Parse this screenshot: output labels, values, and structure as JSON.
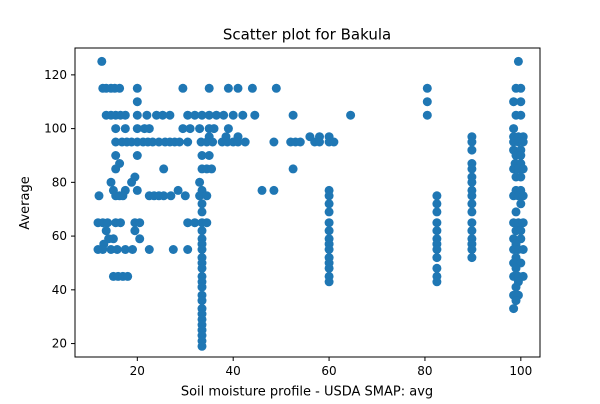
{
  "chart_data": {
    "type": "scatter",
    "title": "Scatter plot for Bakula",
    "xlabel": "Soil moisture profile - USDA SMAP: avg",
    "ylabel": "Average",
    "xlim": [
      7,
      104
    ],
    "ylim": [
      15,
      130
    ],
    "xticks": [
      20,
      40,
      60,
      80,
      100
    ],
    "yticks": [
      20,
      40,
      60,
      80,
      100,
      120
    ],
    "grid": false,
    "marker_color": "#1f77b4",
    "series": [
      {
        "points": [
          [
            12.6,
            125
          ],
          [
            12.8,
            115
          ],
          [
            13.5,
            115
          ],
          [
            14.5,
            115
          ],
          [
            15.3,
            115
          ],
          [
            16.3,
            115
          ],
          [
            20,
            115
          ],
          [
            29.5,
            115
          ],
          [
            35,
            115
          ],
          [
            39,
            115
          ],
          [
            41,
            115
          ],
          [
            44,
            115
          ],
          [
            49,
            115
          ],
          [
            80.5,
            115
          ],
          [
            99.5,
            125
          ],
          [
            99,
            115
          ],
          [
            100,
            115
          ],
          [
            20,
            110
          ],
          [
            80.5,
            110
          ],
          [
            98.5,
            110
          ],
          [
            100,
            110
          ],
          [
            13.5,
            105
          ],
          [
            14.5,
            105
          ],
          [
            15.5,
            105
          ],
          [
            16.5,
            105
          ],
          [
            17.5,
            105
          ],
          [
            20,
            105
          ],
          [
            22,
            105
          ],
          [
            24,
            105
          ],
          [
            25.3,
            105
          ],
          [
            26.8,
            105
          ],
          [
            30.5,
            105
          ],
          [
            32,
            105
          ],
          [
            33.5,
            105
          ],
          [
            35,
            105
          ],
          [
            36.5,
            105
          ],
          [
            38,
            105
          ],
          [
            40,
            105
          ],
          [
            42,
            105
          ],
          [
            44.5,
            105
          ],
          [
            52.5,
            105
          ],
          [
            64.5,
            105
          ],
          [
            80.5,
            105
          ],
          [
            99,
            105
          ],
          [
            100,
            105
          ],
          [
            15.5,
            100
          ],
          [
            17.5,
            100
          ],
          [
            20,
            100
          ],
          [
            21.5,
            100
          ],
          [
            22.5,
            100
          ],
          [
            29.5,
            100
          ],
          [
            31,
            100
          ],
          [
            33,
            100
          ],
          [
            35,
            100
          ],
          [
            36,
            100
          ],
          [
            39,
            100
          ],
          [
            98.5,
            100
          ],
          [
            35,
            97
          ],
          [
            38.5,
            97
          ],
          [
            41,
            97
          ],
          [
            56,
            97
          ],
          [
            58,
            97
          ],
          [
            60,
            97
          ],
          [
            89.8,
            97
          ],
          [
            98.5,
            97
          ],
          [
            99.5,
            97
          ],
          [
            100.5,
            97
          ],
          [
            15.5,
            95
          ],
          [
            16.8,
            95
          ],
          [
            17.8,
            95
          ],
          [
            18.8,
            95
          ],
          [
            20,
            95
          ],
          [
            21.2,
            95
          ],
          [
            22.2,
            95
          ],
          [
            23.2,
            95
          ],
          [
            24.5,
            95
          ],
          [
            25.8,
            95
          ],
          [
            26.8,
            95
          ],
          [
            27.8,
            95
          ],
          [
            28.8,
            95
          ],
          [
            30.5,
            95
          ],
          [
            33.3,
            95
          ],
          [
            34.5,
            95
          ],
          [
            35.7,
            95
          ],
          [
            37.7,
            95
          ],
          [
            38.8,
            95
          ],
          [
            40,
            95
          ],
          [
            41,
            95
          ],
          [
            42.5,
            95
          ],
          [
            48.5,
            95
          ],
          [
            52,
            95
          ],
          [
            53,
            95
          ],
          [
            54,
            95
          ],
          [
            57,
            95
          ],
          [
            58,
            95
          ],
          [
            60,
            95
          ],
          [
            61,
            95
          ],
          [
            89.8,
            95
          ],
          [
            98.5,
            95
          ],
          [
            99.5,
            95
          ],
          [
            100.5,
            95
          ],
          [
            89.8,
            92
          ],
          [
            98.5,
            92
          ],
          [
            100,
            92
          ],
          [
            15.5,
            90
          ],
          [
            20,
            90
          ],
          [
            33.5,
            90
          ],
          [
            35,
            90
          ],
          [
            99,
            90
          ],
          [
            100,
            90
          ],
          [
            16.3,
            87
          ],
          [
            89.8,
            87
          ],
          [
            98.8,
            87
          ],
          [
            100,
            87
          ],
          [
            15.5,
            85
          ],
          [
            25.5,
            85
          ],
          [
            33.5,
            85
          ],
          [
            34.5,
            85
          ],
          [
            35.5,
            85
          ],
          [
            52.5,
            85
          ],
          [
            89.8,
            85
          ],
          [
            98.5,
            85
          ],
          [
            99.5,
            85
          ],
          [
            100.5,
            85
          ],
          [
            19.5,
            82
          ],
          [
            89.8,
            82
          ],
          [
            99,
            82
          ],
          [
            100,
            82
          ],
          [
            14.5,
            80
          ],
          [
            18.8,
            80
          ],
          [
            33,
            80
          ],
          [
            89.8,
            80
          ],
          [
            15,
            77
          ],
          [
            17.5,
            77
          ],
          [
            20,
            77
          ],
          [
            28.5,
            77
          ],
          [
            33.5,
            77
          ],
          [
            46,
            77
          ],
          [
            48.5,
            77
          ],
          [
            60,
            77
          ],
          [
            89.8,
            77
          ],
          [
            99,
            77
          ],
          [
            100,
            77
          ],
          [
            12,
            75
          ],
          [
            15.5,
            75
          ],
          [
            16.3,
            75
          ],
          [
            17,
            75
          ],
          [
            22.5,
            75
          ],
          [
            23.5,
            75
          ],
          [
            24.5,
            75
          ],
          [
            25.5,
            75
          ],
          [
            27,
            75
          ],
          [
            30,
            75
          ],
          [
            33,
            75
          ],
          [
            34.5,
            75
          ],
          [
            60,
            75
          ],
          [
            82.5,
            75
          ],
          [
            89.8,
            75
          ],
          [
            98.5,
            75
          ],
          [
            99.5,
            75
          ],
          [
            100.5,
            75
          ],
          [
            33.5,
            72
          ],
          [
            60,
            72
          ],
          [
            82.5,
            72
          ],
          [
            89.8,
            72
          ],
          [
            100,
            72
          ],
          [
            33.5,
            69
          ],
          [
            60,
            69
          ],
          [
            82.5,
            69
          ],
          [
            89.8,
            69
          ],
          [
            99,
            69
          ],
          [
            11.8,
            65
          ],
          [
            12.8,
            65
          ],
          [
            13.8,
            65
          ],
          [
            15.5,
            65
          ],
          [
            16.5,
            65
          ],
          [
            19.5,
            65
          ],
          [
            20.5,
            65
          ],
          [
            30.5,
            65
          ],
          [
            32,
            65
          ],
          [
            33.5,
            65
          ],
          [
            34.5,
            65
          ],
          [
            60,
            65
          ],
          [
            82.5,
            65
          ],
          [
            89.8,
            65
          ],
          [
            98.5,
            65
          ],
          [
            99.5,
            65
          ],
          [
            100.5,
            65
          ],
          [
            13.5,
            62
          ],
          [
            19.5,
            62
          ],
          [
            33.5,
            62
          ],
          [
            60,
            62
          ],
          [
            82.5,
            62
          ],
          [
            89.8,
            62
          ],
          [
            99,
            62
          ],
          [
            100,
            62
          ],
          [
            14,
            59
          ],
          [
            15,
            59
          ],
          [
            20.5,
            59
          ],
          [
            33.5,
            59
          ],
          [
            60,
            59
          ],
          [
            82.5,
            59
          ],
          [
            89.8,
            59
          ],
          [
            98.5,
            59
          ],
          [
            100,
            59
          ],
          [
            13,
            57
          ],
          [
            33.5,
            57
          ],
          [
            60,
            57
          ],
          [
            82.5,
            57
          ],
          [
            89.8,
            57
          ],
          [
            99,
            57
          ],
          [
            11.8,
            55
          ],
          [
            12.8,
            55
          ],
          [
            14.5,
            55
          ],
          [
            15.8,
            55
          ],
          [
            17.5,
            55
          ],
          [
            19,
            55
          ],
          [
            22.5,
            55
          ],
          [
            27.5,
            55
          ],
          [
            30.5,
            55
          ],
          [
            33.5,
            55
          ],
          [
            60,
            55
          ],
          [
            82.5,
            55
          ],
          [
            89.8,
            55
          ],
          [
            98.5,
            55
          ],
          [
            99.5,
            55
          ],
          [
            100.5,
            55
          ],
          [
            33.5,
            52
          ],
          [
            60,
            52
          ],
          [
            82.5,
            52
          ],
          [
            89.8,
            52
          ],
          [
            99,
            52
          ],
          [
            33.5,
            50
          ],
          [
            60,
            50
          ],
          [
            98.5,
            50
          ],
          [
            100,
            50
          ],
          [
            33.5,
            48
          ],
          [
            60,
            48
          ],
          [
            82.5,
            48
          ],
          [
            99,
            48
          ],
          [
            15,
            45
          ],
          [
            16,
            45
          ],
          [
            17,
            45
          ],
          [
            18,
            45
          ],
          [
            33.5,
            45
          ],
          [
            60,
            45
          ],
          [
            82.5,
            45
          ],
          [
            98.5,
            45
          ],
          [
            99.5,
            45
          ],
          [
            100.5,
            45
          ],
          [
            33.5,
            43
          ],
          [
            60,
            43
          ],
          [
            82.5,
            43
          ],
          [
            99.5,
            43
          ],
          [
            33.5,
            41
          ],
          [
            99,
            41
          ],
          [
            33.5,
            38
          ],
          [
            98.5,
            38
          ],
          [
            99.5,
            38
          ],
          [
            33.5,
            36
          ],
          [
            99,
            36
          ],
          [
            33.5,
            33
          ],
          [
            98.5,
            33
          ],
          [
            33.5,
            31
          ],
          [
            33.5,
            29
          ],
          [
            33.5,
            27
          ],
          [
            33.5,
            25
          ],
          [
            33.5,
            23
          ],
          [
            33.5,
            21
          ],
          [
            33.5,
            19
          ]
        ]
      }
    ]
  }
}
